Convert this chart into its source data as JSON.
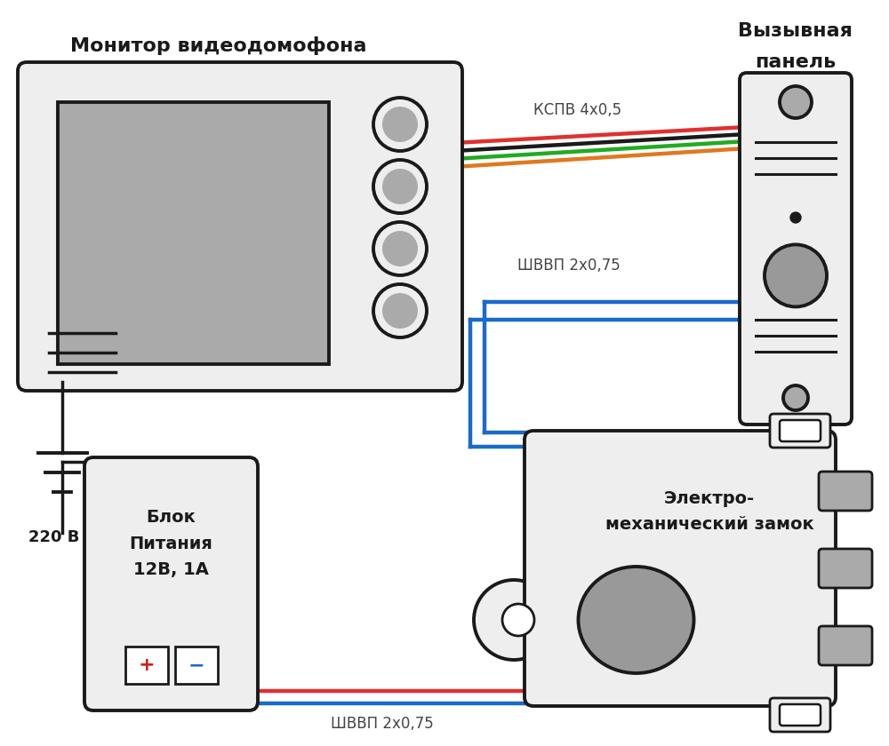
{
  "bg_color": "#ffffff",
  "body_color": "#eeeeee",
  "border_color": "#1a1a1a",
  "screen_color": "#aaaaaa",
  "tab_color": "#aaaaaa",
  "cam_color": "#999999",
  "wire_red": "#e03030",
  "wire_black": "#1a1a1a",
  "wire_green": "#22aa22",
  "wire_orange": "#e07820",
  "wire_blue": "#1a6acc",
  "plus_color": "#cc2222",
  "minus_color": "#1a6acc",
  "monitor_label": "Монитор видеодомофона",
  "panel_label_line1": "Вызывная",
  "panel_label_line2": "панель",
  "power_label": "Блок\nПитания\n12В, 1А",
  "lock_label": "Электро-\nмеханический замок",
  "label_kspv": "КСПВ 4х0,5",
  "label_shvvp_top": "ШВВП 2х0,75",
  "label_shvvp_bot": "ШВВП 2х0,75",
  "label_220": "220 В"
}
